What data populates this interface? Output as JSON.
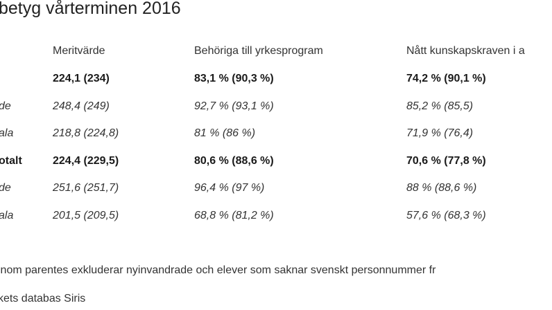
{
  "title": "betyg vårterminen 2016",
  "headers": [
    "Meritvärde",
    "Behöriga till yrkesprogram",
    "Nått kunskapskraven i a"
  ],
  "rows": [
    {
      "label": "",
      "style": "bold",
      "values": [
        "224,1 (234)",
        "83,1 % (90,3 %)",
        "74,2 % (90,1 %)"
      ]
    },
    {
      "label": "de",
      "style": "ital",
      "values": [
        "248,4 (249)",
        "92,7 % (93,1 %)",
        "85,2 % (85,5)"
      ]
    },
    {
      "label": "ala",
      "style": "ital",
      "values": [
        "218,8 (224,8)",
        "81 % (86 %)",
        "71,9 % (76,4)"
      ]
    },
    {
      "label": "otalt",
      "style": "bold",
      "values": [
        "224,4 (229,5)",
        "80,6 % (88,6 %)",
        "70,6 % (77,8 %)"
      ]
    },
    {
      "label": "de",
      "style": "ital",
      "values": [
        "251,6 (251,7)",
        "96,4 % (97 %)",
        "88 % (88,6 %)"
      ]
    },
    {
      "label": "ala",
      "style": "ital",
      "values": [
        "201,5 (209,5)",
        "68,8 % (81,2 %)",
        "57,6 % (68,3 %)"
      ]
    }
  ],
  "notes": [
    " inom parentes exkluderar nyinvandrade och elever som saknar svenskt personnummer fr",
    "kets databas Siris"
  ]
}
